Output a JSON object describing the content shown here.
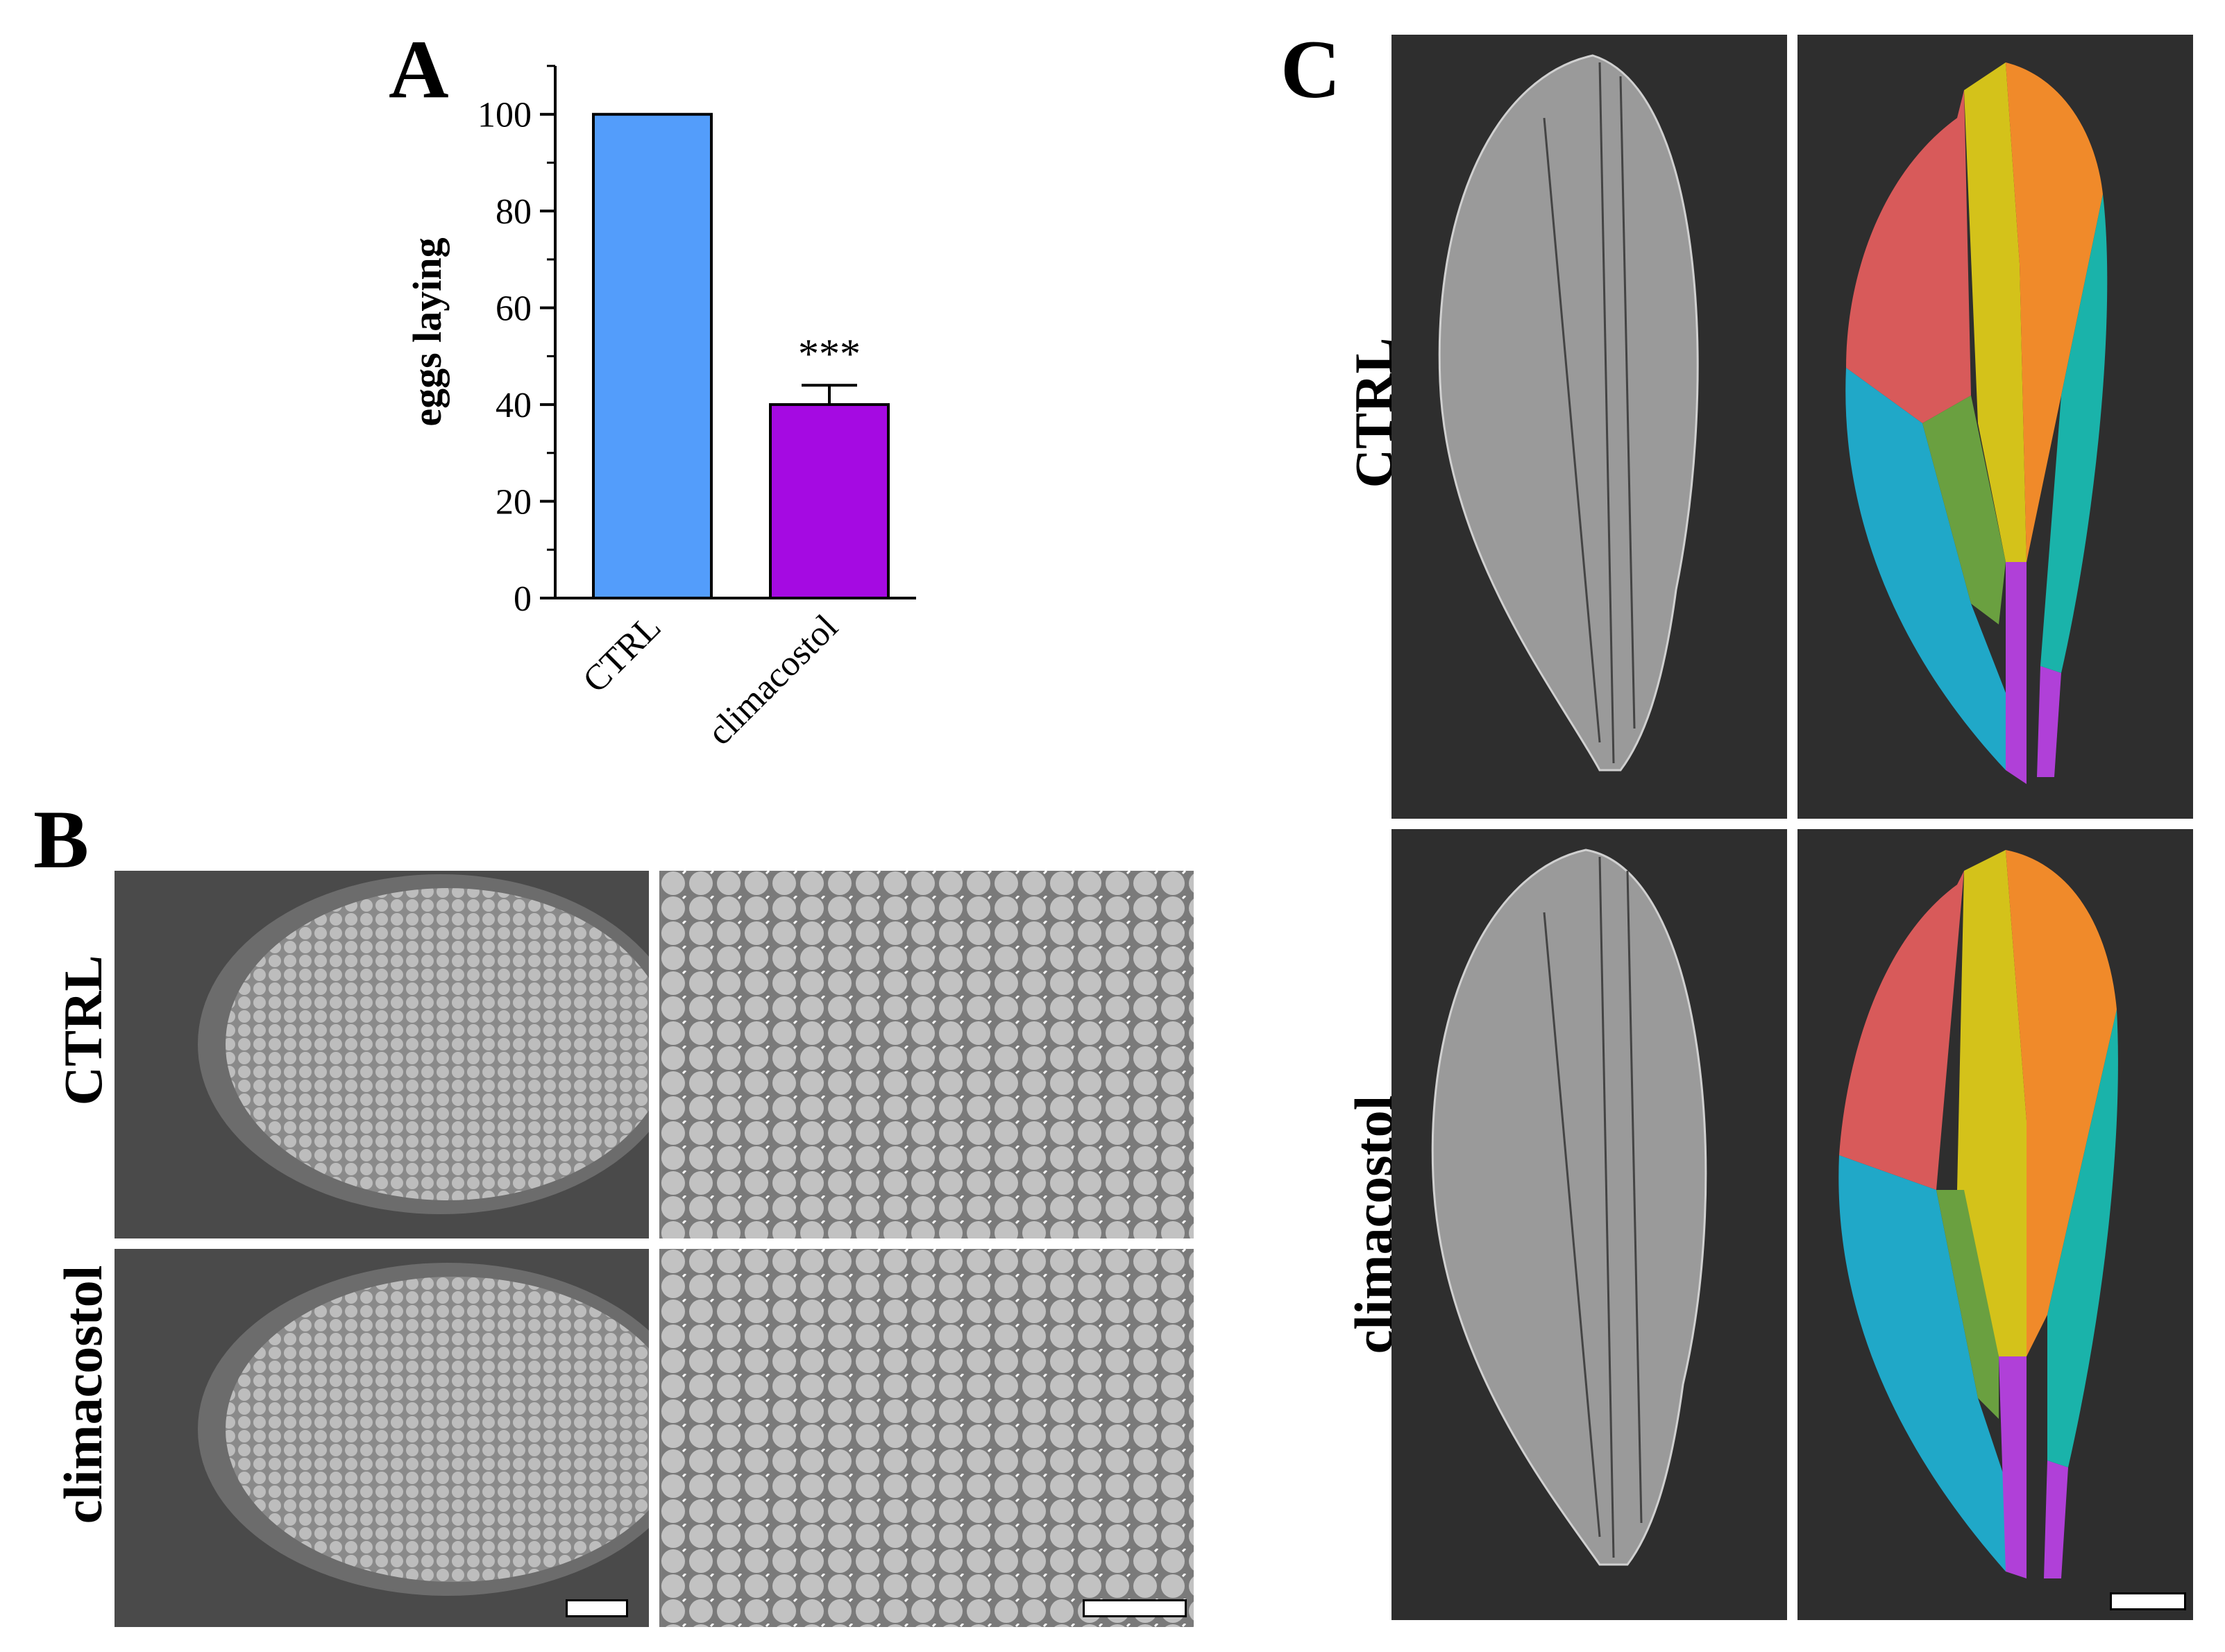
{
  "panels": {
    "a": {
      "letter": "A"
    },
    "b": {
      "letter": "B",
      "rows": [
        "CTRL",
        "climacostol"
      ]
    },
    "c": {
      "letter": "C",
      "rows": [
        "CTRL",
        "climacostol"
      ]
    }
  },
  "chart_data": {
    "type": "bar",
    "ylabel": "eggs laying",
    "xlabel": "",
    "title": "",
    "categories": [
      "CTRL",
      "climacostol"
    ],
    "values": [
      100,
      40
    ],
    "errors": [
      0,
      4
    ],
    "colors": [
      "#539dfb",
      "#a50ae2"
    ],
    "ylim": [
      0,
      110
    ],
    "yticks": [
      "0",
      "20",
      "40",
      "60",
      "80",
      "100"
    ],
    "significance": [
      "",
      "***"
    ],
    "grid": false,
    "legend": "none"
  },
  "colors": {
    "sem_background": "#3a3a3a",
    "wing_regions": [
      "#d85a5a",
      "#d4c21a",
      "#f08a2a",
      "#1ab3aa",
      "#20a8c8",
      "#6aa040",
      "#b040d8"
    ]
  }
}
